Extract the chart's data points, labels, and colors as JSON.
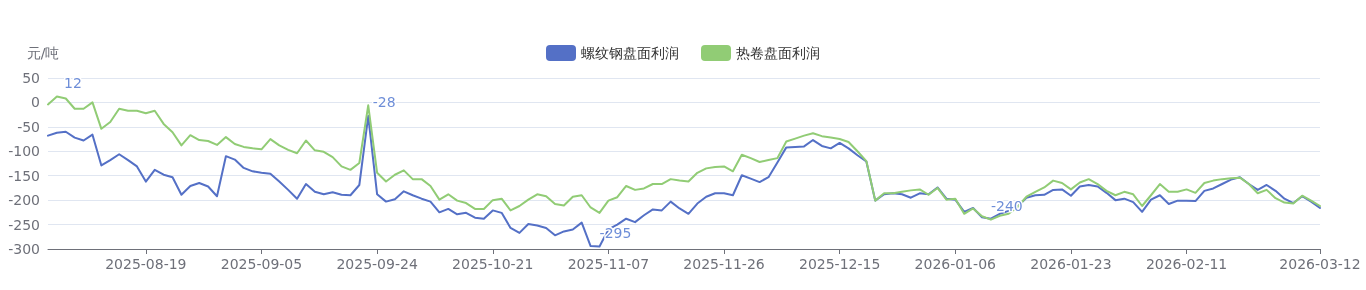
{
  "chart_data": {
    "type": "line",
    "ylabel": "元/吨",
    "legend": "top",
    "grid": "y",
    "marker": "none",
    "line_style": "solid",
    "ylim": [
      -300,
      50
    ],
    "yticks": [
      -300,
      -250,
      -200,
      -150,
      -100,
      -50,
      0,
      50
    ],
    "categories": [
      null,
      null,
      null,
      null,
      null,
      null,
      null,
      null,
      null,
      null,
      null,
      "2025-08-19",
      null,
      null,
      null,
      null,
      null,
      null,
      null,
      null,
      null,
      null,
      null,
      null,
      "2025-09-05",
      null,
      null,
      null,
      null,
      null,
      null,
      null,
      null,
      null,
      null,
      null,
      null,
      "2025-09-24",
      null,
      null,
      null,
      null,
      null,
      null,
      null,
      null,
      null,
      null,
      null,
      null,
      "2025-10-21",
      null,
      null,
      null,
      null,
      null,
      null,
      null,
      null,
      null,
      null,
      null,
      null,
      "2025-11-07",
      null,
      null,
      null,
      null,
      null,
      null,
      null,
      null,
      null,
      null,
      null,
      null,
      "2025-11-26",
      null,
      null,
      null,
      null,
      null,
      null,
      null,
      null,
      null,
      null,
      null,
      null,
      "2025-12-15",
      null,
      null,
      null,
      null,
      null,
      null,
      null,
      null,
      null,
      null,
      null,
      null,
      "2026-01-06",
      null,
      null,
      null,
      null,
      null,
      null,
      null,
      null,
      null,
      null,
      null,
      null,
      "2026-01-23",
      null,
      null,
      null,
      null,
      null,
      null,
      null,
      null,
      null,
      null,
      null,
      null,
      "2026-02-11",
      null,
      null,
      null,
      null,
      null,
      null,
      null,
      null,
      null,
      null,
      null,
      null,
      null,
      null,
      "2026-03-12"
    ],
    "series": [
      {
        "name": "螺纹钢盘面利润",
        "color": "#5470c6",
        "values": [
          -68,
          -62,
          -60,
          -72,
          -78,
          -66,
          -129,
          -118,
          -106,
          -118,
          -131,
          -162,
          -138,
          -148,
          -153,
          -189,
          -171,
          -165,
          -172,
          -192,
          -110,
          -117,
          -134,
          -141,
          -144,
          -146,
          -162,
          -179,
          -197,
          -167,
          -183,
          -188,
          -184,
          -189,
          -190,
          -169,
          -28,
          -188,
          -203,
          -198,
          -182,
          -190,
          -197,
          -203,
          -225,
          -218,
          -229,
          -226,
          -236,
          -238,
          -221,
          -226,
          -257,
          -267,
          -249,
          -252,
          -257,
          -272,
          -264,
          -260,
          -246,
          -294,
          -295,
          -260,
          -250,
          -238,
          -245,
          -231,
          -219,
          -221,
          -203,
          -217,
          -228,
          -207,
          -193,
          -186,
          -186,
          -190,
          -149,
          -156,
          -163,
          -153,
          -123,
          -92,
          -91,
          -90,
          -77,
          -89,
          -94,
          -83,
          -94,
          -108,
          -121,
          -201,
          -188,
          -186,
          -188,
          -195,
          -186,
          -188,
          -174,
          -197,
          -199,
          -224,
          -216,
          -235,
          -238,
          -228,
          -222,
          -213,
          -195,
          -190,
          -189,
          -179,
          -178,
          -191,
          -172,
          -169,
          -172,
          -185,
          -200,
          -197,
          -204,
          -224,
          -199,
          -190,
          -208,
          -201,
          -201,
          -202,
          -181,
          -176,
          -167,
          -158,
          -153,
          -167,
          -179,
          -169,
          -181,
          -197,
          -206,
          -192,
          -203,
          -216
        ],
        "value_labels": [
          null,
          null,
          null,
          null,
          null,
          null,
          null,
          null,
          null,
          null,
          null,
          null,
          null,
          null,
          null,
          null,
          null,
          null,
          null,
          null,
          null,
          null,
          null,
          null,
          null,
          null,
          null,
          null,
          null,
          null,
          null,
          null,
          null,
          null,
          null,
          null,
          "-28",
          null,
          null,
          null,
          null,
          null,
          null,
          null,
          null,
          null,
          null,
          null,
          null,
          null,
          null,
          null,
          null,
          null,
          null,
          null,
          null,
          null,
          null,
          null,
          null,
          null,
          "-295",
          null,
          null,
          null,
          null,
          null,
          null,
          null,
          null,
          null,
          null,
          null,
          null,
          null,
          null,
          null,
          null,
          null,
          null,
          null,
          null,
          null,
          null,
          null,
          null,
          null,
          null,
          null,
          null,
          null,
          null,
          null,
          null,
          null,
          null,
          null,
          null,
          null,
          null,
          null,
          null,
          null,
          null,
          null,
          null,
          null,
          null,
          null,
          null,
          null,
          null,
          null,
          null,
          null,
          null,
          null,
          null,
          null,
          null,
          null,
          null,
          null,
          null,
          null,
          null,
          null,
          null,
          null,
          null,
          null,
          null,
          null,
          null,
          null,
          null,
          null,
          null,
          null,
          null,
          null,
          null,
          null
        ]
      },
      {
        "name": "热卷盘面利润",
        "color": "#91cc75",
        "values": [
          -4,
          12,
          8,
          -13,
          -13,
          0,
          -54,
          -40,
          -13,
          -17,
          -17,
          -22,
          -17,
          -44,
          -61,
          -88,
          -67,
          -77,
          -79,
          -87,
          -71,
          -85,
          -91,
          -94,
          -96,
          -75,
          -88,
          -97,
          -104,
          -78,
          -98,
          -101,
          -112,
          -131,
          -138,
          -124,
          -6,
          -144,
          -162,
          -148,
          -139,
          -157,
          -157,
          -171,
          -199,
          -188,
          -201,
          -206,
          -218,
          -218,
          -200,
          -197,
          -221,
          -212,
          -199,
          -188,
          -192,
          -208,
          -211,
          -193,
          -190,
          -215,
          -226,
          -201,
          -194,
          -171,
          -179,
          -176,
          -167,
          -167,
          -157,
          -160,
          -162,
          -144,
          -135,
          -132,
          -131,
          -141,
          -107,
          -114,
          -122,
          -118,
          -114,
          -80,
          -74,
          -68,
          -63,
          -69,
          -72,
          -75,
          -81,
          -100,
          -120,
          -201,
          -186,
          -186,
          -183,
          -180,
          -178,
          -189,
          -175,
          -199,
          -197,
          -228,
          -217,
          -233,
          -240,
          -232,
          -228,
          -214,
          -193,
          -183,
          -174,
          -160,
          -165,
          -178,
          -164,
          -157,
          -167,
          -181,
          -190,
          -183,
          -188,
          -212,
          -190,
          -167,
          -183,
          -183,
          -178,
          -185,
          -165,
          -160,
          -157,
          -155,
          -154,
          -167,
          -186,
          -179,
          -196,
          -205,
          -207,
          -191,
          -201,
          -212
        ],
        "value_labels": [
          null,
          "12",
          null,
          null,
          null,
          null,
          null,
          null,
          null,
          null,
          null,
          null,
          null,
          null,
          null,
          null,
          null,
          null,
          null,
          null,
          null,
          null,
          null,
          null,
          null,
          null,
          null,
          null,
          null,
          null,
          null,
          null,
          null,
          null,
          null,
          null,
          null,
          null,
          null,
          null,
          null,
          null,
          null,
          null,
          null,
          null,
          null,
          null,
          null,
          null,
          null,
          null,
          null,
          null,
          null,
          null,
          null,
          null,
          null,
          null,
          null,
          null,
          null,
          null,
          null,
          null,
          null,
          null,
          null,
          null,
          null,
          null,
          null,
          null,
          null,
          null,
          null,
          null,
          null,
          null,
          null,
          null,
          null,
          null,
          null,
          null,
          null,
          null,
          null,
          null,
          null,
          null,
          null,
          null,
          null,
          null,
          null,
          null,
          null,
          null,
          null,
          null,
          null,
          null,
          null,
          null,
          "-240",
          null,
          null,
          null,
          null,
          null,
          null,
          null,
          null,
          null,
          null,
          null,
          null,
          null,
          null,
          null,
          null,
          null,
          null,
          null,
          null,
          null,
          null,
          null,
          null,
          null,
          null,
          null,
          null,
          null,
          null,
          null,
          null,
          null,
          null,
          null,
          null,
          null
        ]
      }
    ]
  }
}
